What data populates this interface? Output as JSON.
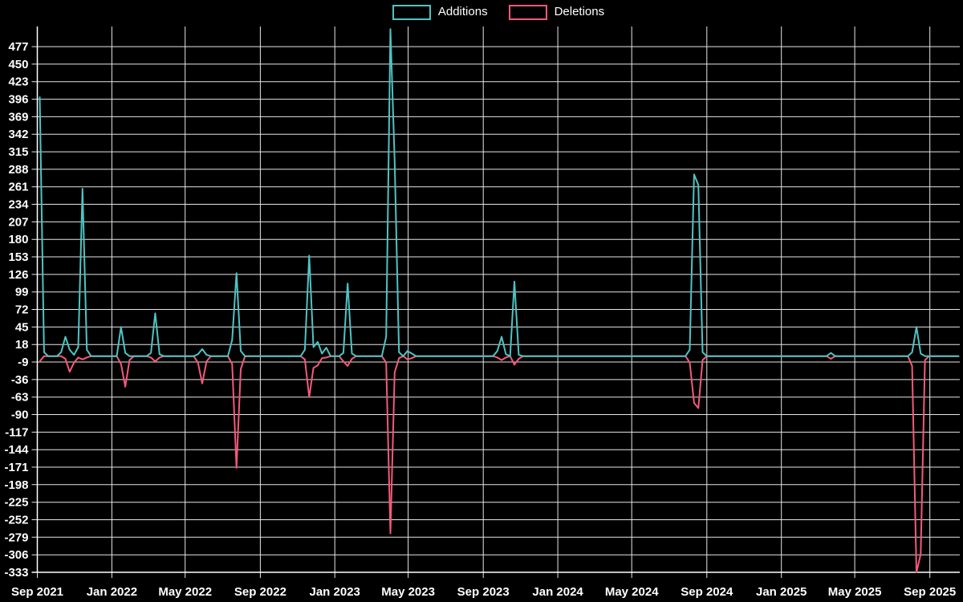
{
  "legend": {
    "items": [
      {
        "label": "Additions",
        "color": "#4dc4c4"
      },
      {
        "label": "Deletions",
        "color": "#f4597b"
      }
    ]
  },
  "chart_data": {
    "type": "line",
    "title": "",
    "xlabel": "",
    "ylabel": "",
    "grid": true,
    "legend_position": "top-center",
    "background_color": "#000000",
    "style": {
      "grid_color": "#e6e6e6",
      "axis_color": "#ffffff",
      "label_color": "#ffffff"
    },
    "x_axis": {
      "domain": [
        "2021-09-01",
        "2025-10-20"
      ],
      "ticks": [
        {
          "label": "Sep 2021",
          "date": "2021-09-01"
        },
        {
          "label": "Jan 2022",
          "date": "2022-01-01"
        },
        {
          "label": "May 2022",
          "date": "2022-05-01"
        },
        {
          "label": "Sep 2022",
          "date": "2022-09-01"
        },
        {
          "label": "Jan 2023",
          "date": "2023-01-01"
        },
        {
          "label": "May 2023",
          "date": "2023-05-01"
        },
        {
          "label": "Sep 2023",
          "date": "2023-09-01"
        },
        {
          "label": "Jan 2024",
          "date": "2024-01-01"
        },
        {
          "label": "May 2024",
          "date": "2024-05-01"
        },
        {
          "label": "Sep 2024",
          "date": "2024-09-01"
        },
        {
          "label": "Jan 2025",
          "date": "2025-01-01"
        },
        {
          "label": "May 2025",
          "date": "2025-05-01"
        },
        {
          "label": "Sep 2025",
          "date": "2025-09-01"
        }
      ]
    },
    "y_axis": {
      "domain": [
        -333,
        508
      ],
      "tick_labels": [
        477,
        450,
        423,
        396,
        369,
        342,
        315,
        288,
        261,
        234,
        207,
        180,
        153,
        126,
        99,
        72,
        45,
        18,
        -9,
        -36,
        -63,
        -90,
        -117,
        -144,
        -171,
        -198,
        -225,
        -252,
        -279,
        -306,
        -333
      ]
    },
    "series": [
      {
        "name": "Additions",
        "key": "additions",
        "color": "#4dc4c4"
      },
      {
        "name": "Deletions",
        "key": "deletions",
        "color": "#f4597b"
      }
    ],
    "sampling": {
      "start": "2021-09-05",
      "end": "2025-10-19",
      "interval": "weekly",
      "baseline": 0
    },
    "points": [
      {
        "date": "2021-09-05",
        "additions": 400,
        "deletions": -8
      },
      {
        "date": "2021-09-12",
        "additions": 6,
        "deletions": 0
      },
      {
        "date": "2021-10-10",
        "additions": 6,
        "deletions": 0
      },
      {
        "date": "2021-10-17",
        "additions": 30,
        "deletions": -4
      },
      {
        "date": "2021-10-24",
        "additions": 10,
        "deletions": -24
      },
      {
        "date": "2021-10-31",
        "additions": 2,
        "deletions": -10
      },
      {
        "date": "2021-11-07",
        "additions": 14,
        "deletions": -2
      },
      {
        "date": "2021-11-14",
        "additions": 258,
        "deletions": -5
      },
      {
        "date": "2021-11-21",
        "additions": 10,
        "deletions": -2
      },
      {
        "date": "2022-01-16",
        "additions": 45,
        "deletions": -12
      },
      {
        "date": "2022-01-23",
        "additions": 5,
        "deletions": -47
      },
      {
        "date": "2022-01-30",
        "additions": 0,
        "deletions": -6
      },
      {
        "date": "2022-03-06",
        "additions": 5,
        "deletions": -2
      },
      {
        "date": "2022-03-13",
        "additions": 66,
        "deletions": -8
      },
      {
        "date": "2022-03-20",
        "additions": 3,
        "deletions": -2
      },
      {
        "date": "2022-05-22",
        "additions": 3,
        "deletions": -10
      },
      {
        "date": "2022-05-29",
        "additions": 11,
        "deletions": -42
      },
      {
        "date": "2022-06-05",
        "additions": 2,
        "deletions": -8
      },
      {
        "date": "2022-07-17",
        "additions": 25,
        "deletions": -12
      },
      {
        "date": "2022-07-24",
        "additions": 128,
        "deletions": -172
      },
      {
        "date": "2022-07-31",
        "additions": 8,
        "deletions": -20
      },
      {
        "date": "2022-11-13",
        "additions": 10,
        "deletions": -5
      },
      {
        "date": "2022-11-20",
        "additions": 155,
        "deletions": -63
      },
      {
        "date": "2022-11-27",
        "additions": 14,
        "deletions": -18
      },
      {
        "date": "2022-12-04",
        "additions": 22,
        "deletions": -14
      },
      {
        "date": "2022-12-11",
        "additions": 4,
        "deletions": -3
      },
      {
        "date": "2022-12-18",
        "additions": 13,
        "deletions": -2
      },
      {
        "date": "2023-01-15",
        "additions": 5,
        "deletions": -8
      },
      {
        "date": "2023-01-22",
        "additions": 112,
        "deletions": -15
      },
      {
        "date": "2023-01-29",
        "additions": 4,
        "deletions": -4
      },
      {
        "date": "2023-03-26",
        "additions": 30,
        "deletions": -10
      },
      {
        "date": "2023-04-02",
        "additions": 504,
        "deletions": -273
      },
      {
        "date": "2023-04-09",
        "additions": 300,
        "deletions": -25
      },
      {
        "date": "2023-04-16",
        "additions": 6,
        "deletions": -3
      },
      {
        "date": "2023-04-30",
        "additions": 8,
        "deletions": -5
      },
      {
        "date": "2023-05-07",
        "additions": 4,
        "deletions": -3
      },
      {
        "date": "2023-09-24",
        "additions": 8,
        "deletions": -2
      },
      {
        "date": "2023-10-01",
        "additions": 30,
        "deletions": -6
      },
      {
        "date": "2023-10-08",
        "additions": 3,
        "deletions": -2
      },
      {
        "date": "2023-10-22",
        "additions": 115,
        "deletions": -13
      },
      {
        "date": "2023-10-29",
        "additions": 2,
        "deletions": -4
      },
      {
        "date": "2024-08-04",
        "additions": 10,
        "deletions": -10
      },
      {
        "date": "2024-08-11",
        "additions": 280,
        "deletions": -72
      },
      {
        "date": "2024-08-18",
        "additions": 264,
        "deletions": -80
      },
      {
        "date": "2024-08-25",
        "additions": 6,
        "deletions": -6
      },
      {
        "date": "2025-03-23",
        "additions": 5,
        "deletions": -4
      },
      {
        "date": "2025-08-03",
        "additions": 6,
        "deletions": -15
      },
      {
        "date": "2025-08-10",
        "additions": 45,
        "deletions": -333
      },
      {
        "date": "2025-08-17",
        "additions": 4,
        "deletions": -305
      },
      {
        "date": "2025-08-24",
        "additions": 0,
        "deletions": -6
      }
    ]
  }
}
